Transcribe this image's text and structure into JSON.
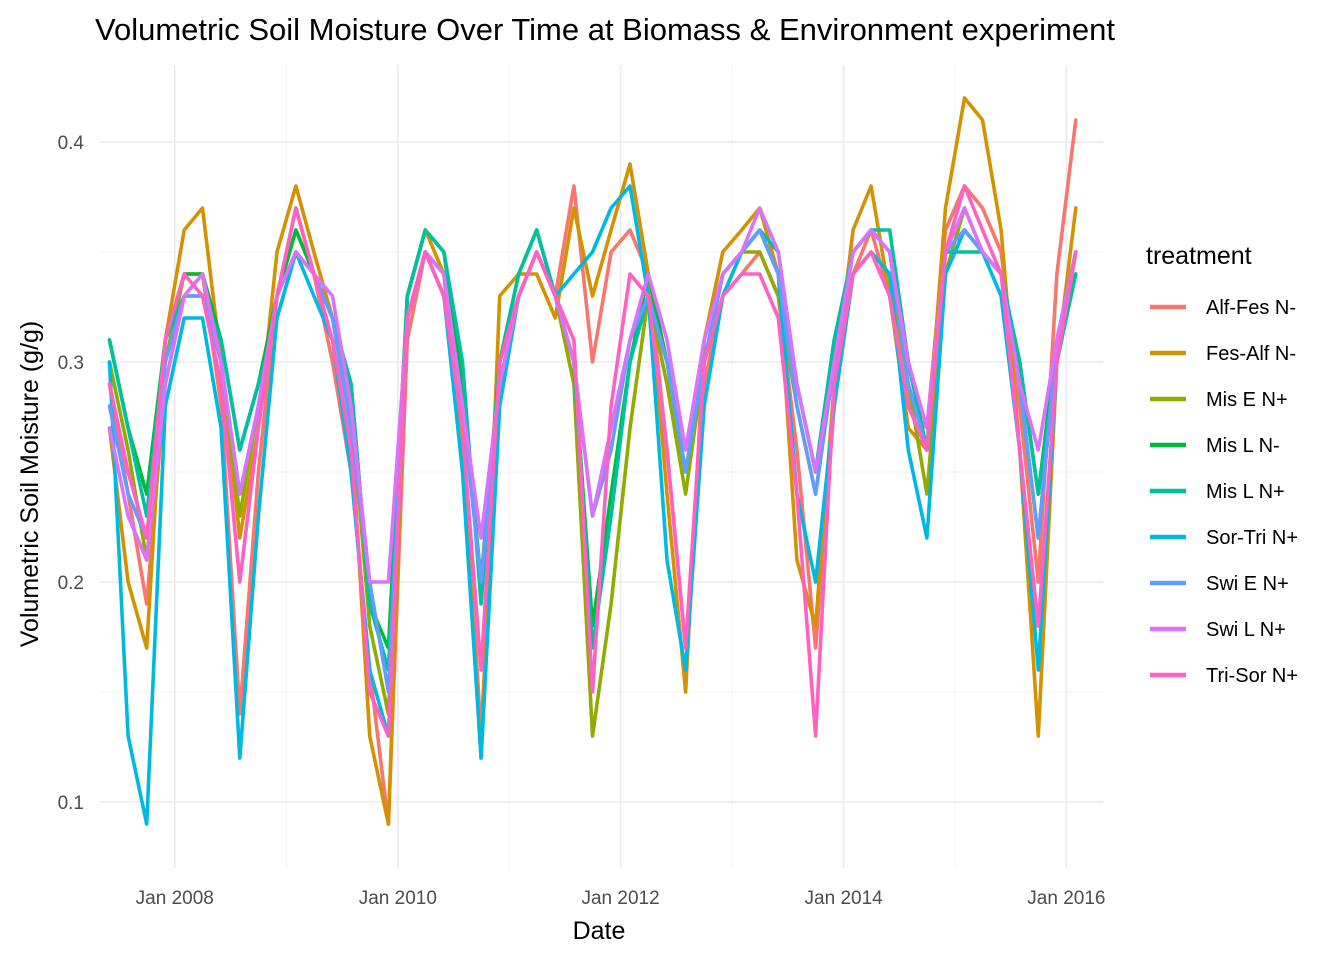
{
  "chart_data": {
    "type": "line",
    "title": "Volumetric Soil Moisture Over Time at Biomass & Environment experiment",
    "xlabel": "Date",
    "ylabel": "Volumetric Soil Moisture (g/g)",
    "x_ticks": [
      "Jan 2008",
      "Jan 2010",
      "Jan 2012",
      "Jan 2014",
      "Jan 2016"
    ],
    "y_ticks": [
      0.1,
      0.2,
      0.3,
      0.4
    ],
    "xlim": [
      "2007-05-01",
      "2016-04-30"
    ],
    "ylim": [
      0.07,
      0.435
    ],
    "grid": true,
    "legend": {
      "title": "treatment",
      "placement": "right"
    },
    "x": [
      "2007-06-01",
      "2007-08-01",
      "2007-10-01",
      "2007-12-01",
      "2008-02-01",
      "2008-04-01",
      "2008-06-01",
      "2008-08-01",
      "2008-10-01",
      "2008-12-01",
      "2009-02-01",
      "2009-04-01",
      "2009-06-01",
      "2009-08-01",
      "2009-10-01",
      "2009-12-01",
      "2010-02-01",
      "2010-04-01",
      "2010-06-01",
      "2010-08-01",
      "2010-10-01",
      "2010-12-01",
      "2011-02-01",
      "2011-04-01",
      "2011-06-01",
      "2011-08-01",
      "2011-10-01",
      "2011-12-01",
      "2012-02-01",
      "2012-04-01",
      "2012-06-01",
      "2012-08-01",
      "2012-10-01",
      "2012-12-01",
      "2013-02-01",
      "2013-04-01",
      "2013-06-01",
      "2013-08-01",
      "2013-10-01",
      "2013-12-01",
      "2014-02-01",
      "2014-04-01",
      "2014-06-01",
      "2014-08-01",
      "2014-10-01",
      "2014-12-01",
      "2015-02-01",
      "2015-04-01",
      "2015-06-01",
      "2015-08-01",
      "2015-10-01",
      "2015-12-01",
      "2016-02-01"
    ],
    "series": [
      {
        "name": "Alf-Fes N-",
        "color": "#F8766D",
        "values": [
          0.29,
          0.24,
          0.19,
          0.29,
          0.33,
          0.34,
          0.28,
          0.14,
          0.25,
          0.33,
          0.37,
          0.34,
          0.3,
          0.25,
          0.16,
          0.09,
          0.31,
          0.35,
          0.33,
          0.27,
          0.13,
          0.3,
          0.33,
          0.35,
          0.33,
          0.38,
          0.3,
          0.35,
          0.36,
          0.34,
          0.26,
          0.17,
          0.29,
          0.33,
          0.34,
          0.35,
          0.33,
          0.26,
          0.17,
          0.28,
          0.34,
          0.36,
          0.33,
          0.28,
          0.27,
          0.36,
          0.38,
          0.37,
          0.35,
          0.28,
          0.2,
          0.34,
          0.41
        ]
      },
      {
        "name": "Fes-Alf N-",
        "color": "#D39200",
        "values": [
          0.27,
          0.2,
          0.17,
          0.31,
          0.36,
          0.37,
          0.3,
          0.22,
          0.27,
          0.35,
          0.38,
          0.35,
          0.32,
          0.27,
          0.13,
          0.09,
          0.33,
          0.36,
          0.34,
          0.26,
          0.12,
          0.33,
          0.34,
          0.34,
          0.32,
          0.37,
          0.33,
          0.36,
          0.39,
          0.34,
          0.24,
          0.15,
          0.31,
          0.35,
          0.36,
          0.37,
          0.34,
          0.21,
          0.18,
          0.29,
          0.36,
          0.38,
          0.33,
          0.27,
          0.26,
          0.37,
          0.42,
          0.41,
          0.36,
          0.26,
          0.13,
          0.3,
          0.37
        ]
      },
      {
        "name": "Mis E N+",
        "color": "#93AA00",
        "values": [
          0.3,
          0.26,
          0.21,
          0.3,
          0.34,
          0.34,
          0.3,
          0.23,
          0.28,
          0.33,
          0.36,
          0.34,
          0.32,
          0.28,
          0.18,
          0.14,
          0.32,
          0.35,
          0.34,
          0.28,
          0.2,
          0.3,
          0.33,
          0.35,
          0.33,
          0.29,
          0.13,
          0.19,
          0.27,
          0.33,
          0.29,
          0.24,
          0.3,
          0.33,
          0.35,
          0.35,
          0.33,
          0.28,
          0.24,
          0.3,
          0.34,
          0.35,
          0.34,
          0.29,
          0.24,
          0.34,
          0.37,
          0.35,
          0.34,
          0.29,
          0.22,
          0.31,
          0.35
        ]
      },
      {
        "name": "Mis L N-",
        "color": "#00BA38",
        "values": [
          0.31,
          0.27,
          0.24,
          0.31,
          0.34,
          0.34,
          0.31,
          0.26,
          0.29,
          0.33,
          0.36,
          0.34,
          0.32,
          0.29,
          0.19,
          0.17,
          0.33,
          0.36,
          0.35,
          0.29,
          0.2,
          0.3,
          0.34,
          0.36,
          0.33,
          0.3,
          0.18,
          0.24,
          0.3,
          0.34,
          0.3,
          0.25,
          0.3,
          0.34,
          0.35,
          0.36,
          0.34,
          0.29,
          0.25,
          0.31,
          0.35,
          0.36,
          0.35,
          0.3,
          0.26,
          0.35,
          0.36,
          0.35,
          0.34,
          0.3,
          0.24,
          0.31,
          0.35
        ]
      },
      {
        "name": "Mis L N+",
        "color": "#00C19F",
        "values": [
          0.31,
          0.27,
          0.23,
          0.31,
          0.33,
          0.33,
          0.31,
          0.26,
          0.29,
          0.32,
          0.35,
          0.34,
          0.32,
          0.29,
          0.19,
          0.16,
          0.33,
          0.36,
          0.35,
          0.3,
          0.19,
          0.3,
          0.34,
          0.36,
          0.33,
          0.3,
          0.17,
          0.23,
          0.3,
          0.33,
          0.3,
          0.25,
          0.3,
          0.34,
          0.35,
          0.36,
          0.35,
          0.29,
          0.25,
          0.31,
          0.35,
          0.36,
          0.36,
          0.3,
          0.26,
          0.35,
          0.35,
          0.35,
          0.34,
          0.3,
          0.24,
          0.3,
          0.34
        ]
      },
      {
        "name": "Sor-Tri N+",
        "color": "#00B9E3",
        "values": [
          0.3,
          0.13,
          0.09,
          0.28,
          0.32,
          0.32,
          0.27,
          0.12,
          0.23,
          0.32,
          0.35,
          0.33,
          0.31,
          0.25,
          0.16,
          0.13,
          0.32,
          0.35,
          0.33,
          0.25,
          0.12,
          0.28,
          0.33,
          0.35,
          0.33,
          0.34,
          0.35,
          0.37,
          0.38,
          0.33,
          0.21,
          0.16,
          0.28,
          0.33,
          0.35,
          0.36,
          0.34,
          0.24,
          0.2,
          0.28,
          0.34,
          0.35,
          0.34,
          0.26,
          0.22,
          0.34,
          0.36,
          0.35,
          0.33,
          0.26,
          0.16,
          0.3,
          0.35
        ]
      },
      {
        "name": "Swi E N+",
        "color": "#619CFF",
        "values": [
          0.28,
          0.24,
          0.22,
          0.3,
          0.33,
          0.33,
          0.3,
          0.24,
          0.28,
          0.33,
          0.35,
          0.34,
          0.32,
          0.27,
          0.2,
          0.15,
          0.32,
          0.35,
          0.34,
          0.28,
          0.2,
          0.29,
          0.33,
          0.35,
          0.33,
          0.3,
          0.23,
          0.26,
          0.31,
          0.33,
          0.3,
          0.25,
          0.3,
          0.34,
          0.35,
          0.36,
          0.34,
          0.28,
          0.24,
          0.3,
          0.35,
          0.36,
          0.35,
          0.29,
          0.26,
          0.35,
          0.36,
          0.35,
          0.34,
          0.29,
          0.22,
          0.31,
          0.35
        ]
      },
      {
        "name": "Swi L N+",
        "color": "#DB72FB",
        "values": [
          0.27,
          0.23,
          0.21,
          0.29,
          0.33,
          0.34,
          0.3,
          0.24,
          0.28,
          0.33,
          0.35,
          0.34,
          0.33,
          0.28,
          0.2,
          0.2,
          0.32,
          0.35,
          0.34,
          0.28,
          0.22,
          0.29,
          0.33,
          0.35,
          0.33,
          0.3,
          0.23,
          0.27,
          0.31,
          0.34,
          0.31,
          0.26,
          0.31,
          0.34,
          0.35,
          0.37,
          0.35,
          0.29,
          0.25,
          0.3,
          0.35,
          0.36,
          0.35,
          0.3,
          0.27,
          0.35,
          0.37,
          0.35,
          0.34,
          0.29,
          0.26,
          0.31,
          0.35
        ]
      },
      {
        "name": "Tri-Sor N+",
        "color": "#FF61C3",
        "values": [
          0.29,
          0.25,
          0.22,
          0.31,
          0.34,
          0.33,
          0.29,
          0.2,
          0.27,
          0.33,
          0.37,
          0.34,
          0.31,
          0.26,
          0.15,
          0.13,
          0.32,
          0.35,
          0.33,
          0.27,
          0.16,
          0.3,
          0.33,
          0.35,
          0.33,
          0.31,
          0.15,
          0.28,
          0.34,
          0.33,
          0.26,
          0.17,
          0.3,
          0.33,
          0.34,
          0.34,
          0.32,
          0.24,
          0.13,
          0.29,
          0.34,
          0.35,
          0.33,
          0.28,
          0.26,
          0.35,
          0.38,
          0.36,
          0.34,
          0.26,
          0.18,
          0.3,
          0.35
        ]
      }
    ]
  }
}
